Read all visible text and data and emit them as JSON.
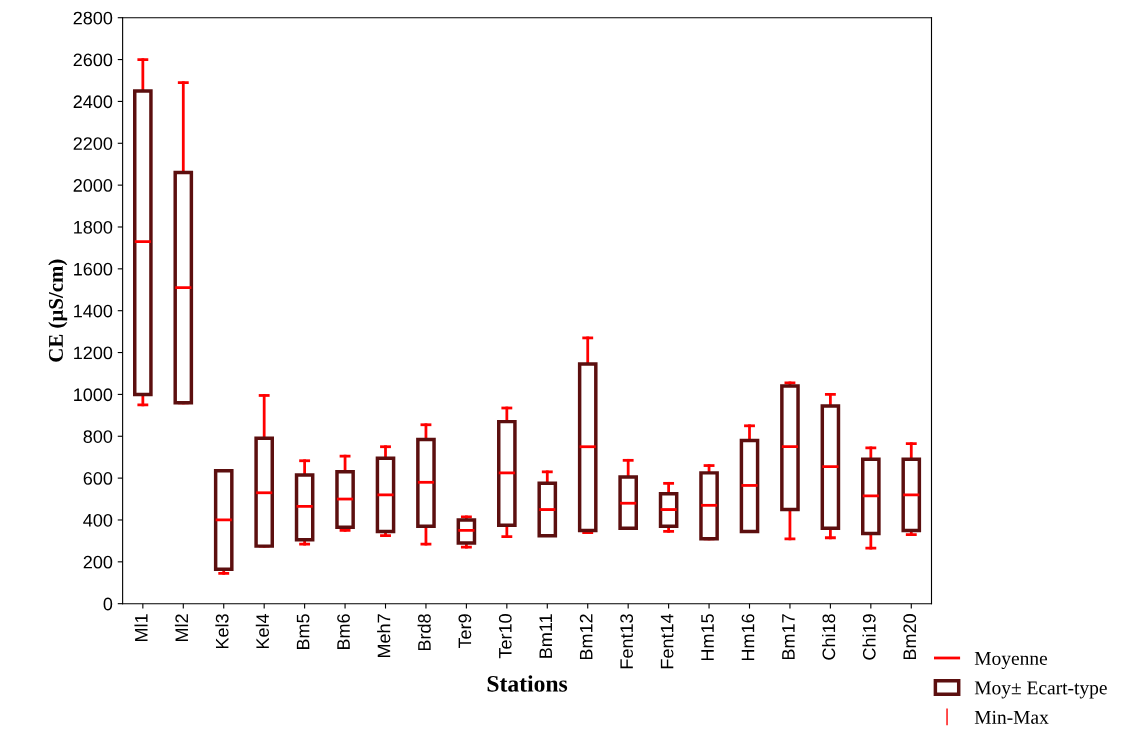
{
  "chart_data": {
    "type": "box",
    "xlabel": "Stations",
    "ylabel": "CE (µS/cm)",
    "categories": [
      "Ml1",
      "Ml2",
      "Kel3",
      "Kel4",
      "Bm5",
      "Bm6",
      "Meh7",
      "Brd8",
      "Ter9",
      "Ter10",
      "Bm11",
      "Bm12",
      "Fent13",
      "Fent14",
      "Hm15",
      "Hm16",
      "Bm17",
      "Chi18",
      "Chi19",
      "Bm20"
    ],
    "annotations": [
      "Moyenne",
      "Min-Max"
    ],
    "series": [
      {
        "name": "Moy± Ecart-type",
        "color": "#5c0f0f",
        "boxes": [
          {
            "low": 950,
            "q1": 1000,
            "median": 1730,
            "q3": 2450,
            "high": 2600
          },
          {
            "low": 960,
            "q1": 960,
            "median": 1510,
            "q3": 2060,
            "high": 2490
          },
          {
            "low": 145,
            "q1": 165,
            "median": 400,
            "q3": 635,
            "high": 635
          },
          {
            "low": 275,
            "q1": 275,
            "median": 530,
            "q3": 790,
            "high": 995
          },
          {
            "low": 285,
            "q1": 305,
            "median": 465,
            "q3": 615,
            "high": 683
          },
          {
            "low": 350,
            "q1": 365,
            "median": 500,
            "q3": 630,
            "high": 705
          },
          {
            "low": 325,
            "q1": 345,
            "median": 520,
            "q3": 695,
            "high": 750
          },
          {
            "low": 285,
            "q1": 370,
            "median": 580,
            "q3": 785,
            "high": 855
          },
          {
            "low": 270,
            "q1": 290,
            "median": 350,
            "q3": 400,
            "high": 415
          },
          {
            "low": 320,
            "q1": 375,
            "median": 625,
            "q3": 870,
            "high": 935
          },
          {
            "low": 325,
            "q1": 325,
            "median": 450,
            "q3": 575,
            "high": 630
          },
          {
            "low": 340,
            "q1": 350,
            "median": 750,
            "q3": 1145,
            "high": 1270
          },
          {
            "low": 360,
            "q1": 360,
            "median": 480,
            "q3": 605,
            "high": 685
          },
          {
            "low": 345,
            "q1": 370,
            "median": 450,
            "q3": 525,
            "high": 575
          },
          {
            "low": 310,
            "q1": 310,
            "median": 470,
            "q3": 625,
            "high": 660
          },
          {
            "low": 345,
            "q1": 345,
            "median": 565,
            "q3": 780,
            "high": 850
          },
          {
            "low": 310,
            "q1": 450,
            "median": 750,
            "q3": 1040,
            "high": 1055
          },
          {
            "low": 315,
            "q1": 360,
            "median": 655,
            "q3": 945,
            "high": 1000
          },
          {
            "low": 265,
            "q1": 335,
            "median": 515,
            "q3": 690,
            "high": 745
          },
          {
            "low": 330,
            "q1": 350,
            "median": 520,
            "q3": 690,
            "high": 765
          }
        ]
      }
    ],
    "ylim": [
      0,
      2800
    ],
    "yticks": [
      0,
      200,
      400,
      600,
      800,
      1000,
      1200,
      1400,
      1600,
      1800,
      2000,
      2200,
      2400,
      2600,
      2800
    ],
    "grid": false,
    "legend": "bottom right"
  }
}
